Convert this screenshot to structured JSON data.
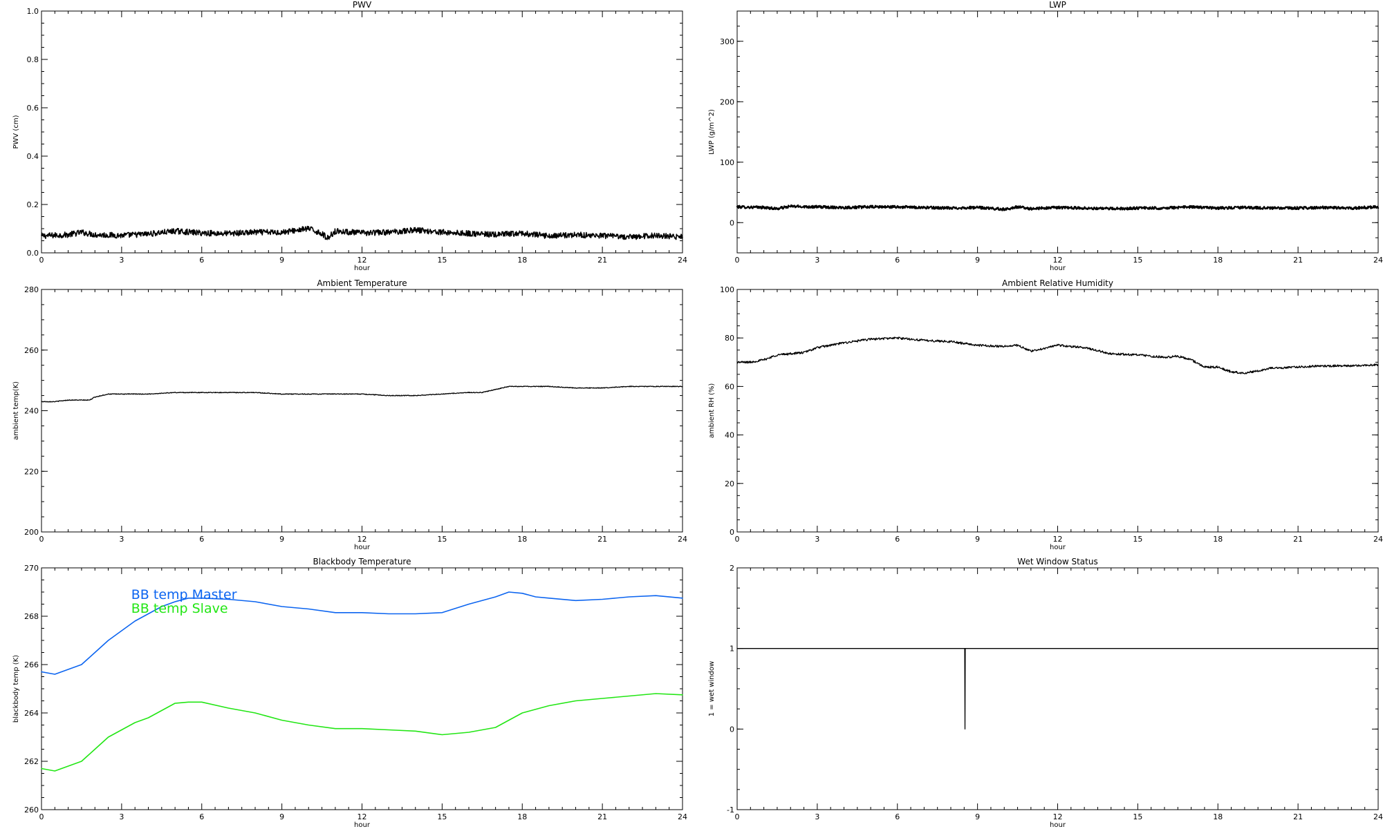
{
  "chart_data": [
    {
      "type": "line",
      "title": "PWV",
      "xlabel": "hour",
      "ylabel": "PWV (cm)",
      "xlim": [
        0,
        24
      ],
      "ylim": [
        0,
        1.0
      ],
      "xticks": [
        0,
        3,
        6,
        9,
        12,
        15,
        18,
        21,
        24
      ],
      "xticklabels": [
        "0",
        "3",
        "6",
        "9",
        "12",
        "15",
        "18",
        "21",
        "24"
      ],
      "yticks": [
        0,
        0.2,
        0.4,
        0.6,
        0.8,
        1.0
      ],
      "yticklabels": [
        "0.0",
        "0.2",
        "0.4",
        "0.6",
        "0.8",
        "1.0"
      ],
      "series": [
        {
          "color": "#000000",
          "x": [
            0,
            1,
            1.5,
            2,
            3,
            4,
            5,
            6,
            7,
            8,
            9,
            10,
            10.5,
            10.7,
            11,
            12,
            13,
            14,
            15,
            16,
            17,
            18,
            19,
            20,
            21,
            22,
            23,
            24
          ],
          "y": [
            0.07,
            0.075,
            0.085,
            0.075,
            0.072,
            0.078,
            0.09,
            0.082,
            0.08,
            0.085,
            0.085,
            0.1,
            0.08,
            0.06,
            0.09,
            0.082,
            0.085,
            0.095,
            0.085,
            0.08,
            0.075,
            0.08,
            0.07,
            0.075,
            0.07,
            0.065,
            0.072,
            0.065
          ]
        }
      ],
      "grid": false
    },
    {
      "type": "line",
      "title": "LWP",
      "xlabel": "hour",
      "ylabel": "LWP (g/m^2)",
      "xlim": [
        0,
        24
      ],
      "ylim": [
        -50,
        350
      ],
      "xticks": [
        0,
        3,
        6,
        9,
        12,
        15,
        18,
        21,
        24
      ],
      "xticklabels": [
        "0",
        "3",
        "6",
        "9",
        "12",
        "15",
        "18",
        "21",
        "24"
      ],
      "yticks": [
        0,
        100,
        200,
        300
      ],
      "yticklabels": [
        "0",
        "100",
        "200",
        "300"
      ],
      "series": [
        {
          "color": "#000000",
          "x": [
            0,
            1,
            1.5,
            2,
            3,
            4,
            5,
            6,
            7,
            8,
            9,
            10,
            10.5,
            11,
            12,
            13,
            14,
            15,
            16,
            17,
            18,
            19,
            20,
            21,
            22,
            23,
            24
          ],
          "y": [
            26,
            25,
            23,
            27,
            26,
            25,
            26,
            26,
            25,
            24,
            25,
            22,
            26,
            23,
            25,
            24,
            23,
            24,
            24,
            26,
            24,
            25,
            24,
            24,
            25,
            24,
            26
          ]
        }
      ],
      "grid": false
    },
    {
      "type": "line",
      "title": "Ambient Temperature",
      "xlabel": "hour",
      "ylabel": "ambient temp(K)",
      "xlim": [
        0,
        24
      ],
      "ylim": [
        200,
        280
      ],
      "xticks": [
        0,
        3,
        6,
        9,
        12,
        15,
        18,
        21,
        24
      ],
      "xticklabels": [
        "0",
        "3",
        "6",
        "9",
        "12",
        "15",
        "18",
        "21",
        "24"
      ],
      "yticks": [
        200,
        220,
        240,
        260,
        280
      ],
      "yticklabels": [
        "200",
        "220",
        "240",
        "260",
        "280"
      ],
      "series": [
        {
          "color": "#000000",
          "x": [
            0,
            0.5,
            1,
            1.5,
            1.8,
            2,
            2.5,
            3,
            4,
            5,
            6,
            7,
            8,
            9,
            10,
            11,
            12,
            13,
            14,
            15,
            16,
            16.5,
            17,
            17.5,
            18,
            19,
            20,
            21,
            22,
            23,
            24
          ],
          "y": [
            243,
            243,
            243.5,
            243.5,
            243.5,
            244.5,
            245.5,
            245.5,
            245.5,
            246,
            246,
            246,
            246,
            245.5,
            245.5,
            245.5,
            245.5,
            245,
            245,
            245.5,
            246,
            246,
            247,
            248,
            248,
            248,
            247.5,
            247.5,
            248,
            248,
            248
          ]
        }
      ],
      "grid": false
    },
    {
      "type": "line",
      "title": "Ambient Relative Humidity",
      "xlabel": "hour",
      "ylabel": "ambient RH (%)",
      "xlim": [
        0,
        24
      ],
      "ylim": [
        0,
        100
      ],
      "xticks": [
        0,
        3,
        6,
        9,
        12,
        15,
        18,
        21,
        24
      ],
      "xticklabels": [
        "0",
        "3",
        "6",
        "9",
        "12",
        "15",
        "18",
        "21",
        "24"
      ],
      "yticks": [
        0,
        20,
        40,
        60,
        80,
        100
      ],
      "yticklabels": [
        "0",
        "20",
        "40",
        "60",
        "80",
        "100"
      ],
      "series": [
        {
          "color": "#000000",
          "x": [
            0,
            0.5,
            1,
            1.5,
            2,
            2.5,
            3,
            4,
            5,
            6,
            7,
            8,
            9,
            10,
            10.5,
            11,
            12,
            13,
            14,
            15,
            16,
            16.5,
            17,
            17.5,
            18,
            18.5,
            19,
            20,
            21,
            22,
            23,
            24
          ],
          "y": [
            70,
            70,
            71,
            73,
            73.5,
            74,
            76,
            78,
            79.5,
            80,
            79,
            78.5,
            77,
            76.5,
            77,
            74.5,
            77,
            76,
            73.5,
            73,
            72,
            72.5,
            71,
            68,
            68,
            66,
            65.5,
            67.5,
            68,
            68.5,
            68.5,
            69
          ]
        }
      ],
      "grid": false
    },
    {
      "type": "line",
      "title": "Blackbody Temperature",
      "xlabel": "hour",
      "ylabel": "blackbody temp (K)",
      "xlim": [
        0,
        24
      ],
      "ylim": [
        260,
        270
      ],
      "xticks": [
        0,
        3,
        6,
        9,
        12,
        15,
        18,
        21,
        24
      ],
      "xticklabels": [
        "0",
        "3",
        "6",
        "9",
        "12",
        "15",
        "18",
        "21",
        "24"
      ],
      "yticks": [
        260,
        262,
        264,
        266,
        268,
        270
      ],
      "yticklabels": [
        "260",
        "262",
        "264",
        "266",
        "268",
        "270"
      ],
      "legend_location": "upper-left",
      "series": [
        {
          "name": "BB temp Master",
          "color": "#0b64f0",
          "x": [
            0,
            0.5,
            1,
            1.5,
            2,
            2.5,
            3,
            3.5,
            4,
            4.5,
            5,
            5.5,
            6,
            7,
            8,
            9,
            10,
            11,
            12,
            13,
            14,
            15,
            16,
            17,
            17.5,
            18,
            18.5,
            19,
            20,
            21,
            22,
            23,
            24
          ],
          "y": [
            265.7,
            265.6,
            265.8,
            266,
            266.5,
            267,
            267.4,
            267.8,
            268.1,
            268.4,
            268.6,
            268.75,
            268.75,
            268.7,
            268.6,
            268.4,
            268.3,
            268.15,
            268.15,
            268.1,
            268.1,
            268.15,
            268.5,
            268.8,
            269,
            268.95,
            268.8,
            268.75,
            268.65,
            268.7,
            268.8,
            268.85,
            268.75
          ]
        },
        {
          "name": "BB temp Slave",
          "color": "#22e614",
          "x": [
            0,
            0.5,
            1,
            1.5,
            2,
            2.5,
            3,
            3.5,
            4,
            4.5,
            5,
            5.5,
            6,
            7,
            8,
            9,
            10,
            11,
            12,
            13,
            14,
            15,
            16,
            16.5,
            17,
            17.5,
            18,
            19,
            20,
            21,
            22,
            23,
            24
          ],
          "y": [
            261.7,
            261.6,
            261.8,
            262,
            262.5,
            263,
            263.3,
            263.6,
            263.8,
            264.1,
            264.4,
            264.45,
            264.45,
            264.2,
            264,
            263.7,
            263.5,
            263.35,
            263.35,
            263.3,
            263.25,
            263.1,
            263.2,
            263.3,
            263.4,
            263.7,
            264,
            264.3,
            264.5,
            264.6,
            264.7,
            264.8,
            264.75
          ]
        }
      ],
      "grid": false
    },
    {
      "type": "line",
      "title": "Wet Window Status",
      "xlabel": "hour",
      "ylabel": "1 = wet window",
      "xlim": [
        0,
        24
      ],
      "ylim": [
        -1,
        2
      ],
      "xticks": [
        0,
        3,
        6,
        9,
        12,
        15,
        18,
        21,
        24
      ],
      "xticklabels": [
        "0",
        "3",
        "6",
        "9",
        "12",
        "15",
        "18",
        "21",
        "24"
      ],
      "yticks": [
        -1,
        0,
        1,
        2
      ],
      "yticklabels": [
        "-1",
        "0",
        "1",
        "2"
      ],
      "series": [
        {
          "color": "#000000",
          "x": [
            0,
            8.52,
            8.53,
            8.54,
            24
          ],
          "y": [
            1,
            1,
            0,
            1,
            1
          ]
        }
      ],
      "grid": false
    }
  ]
}
